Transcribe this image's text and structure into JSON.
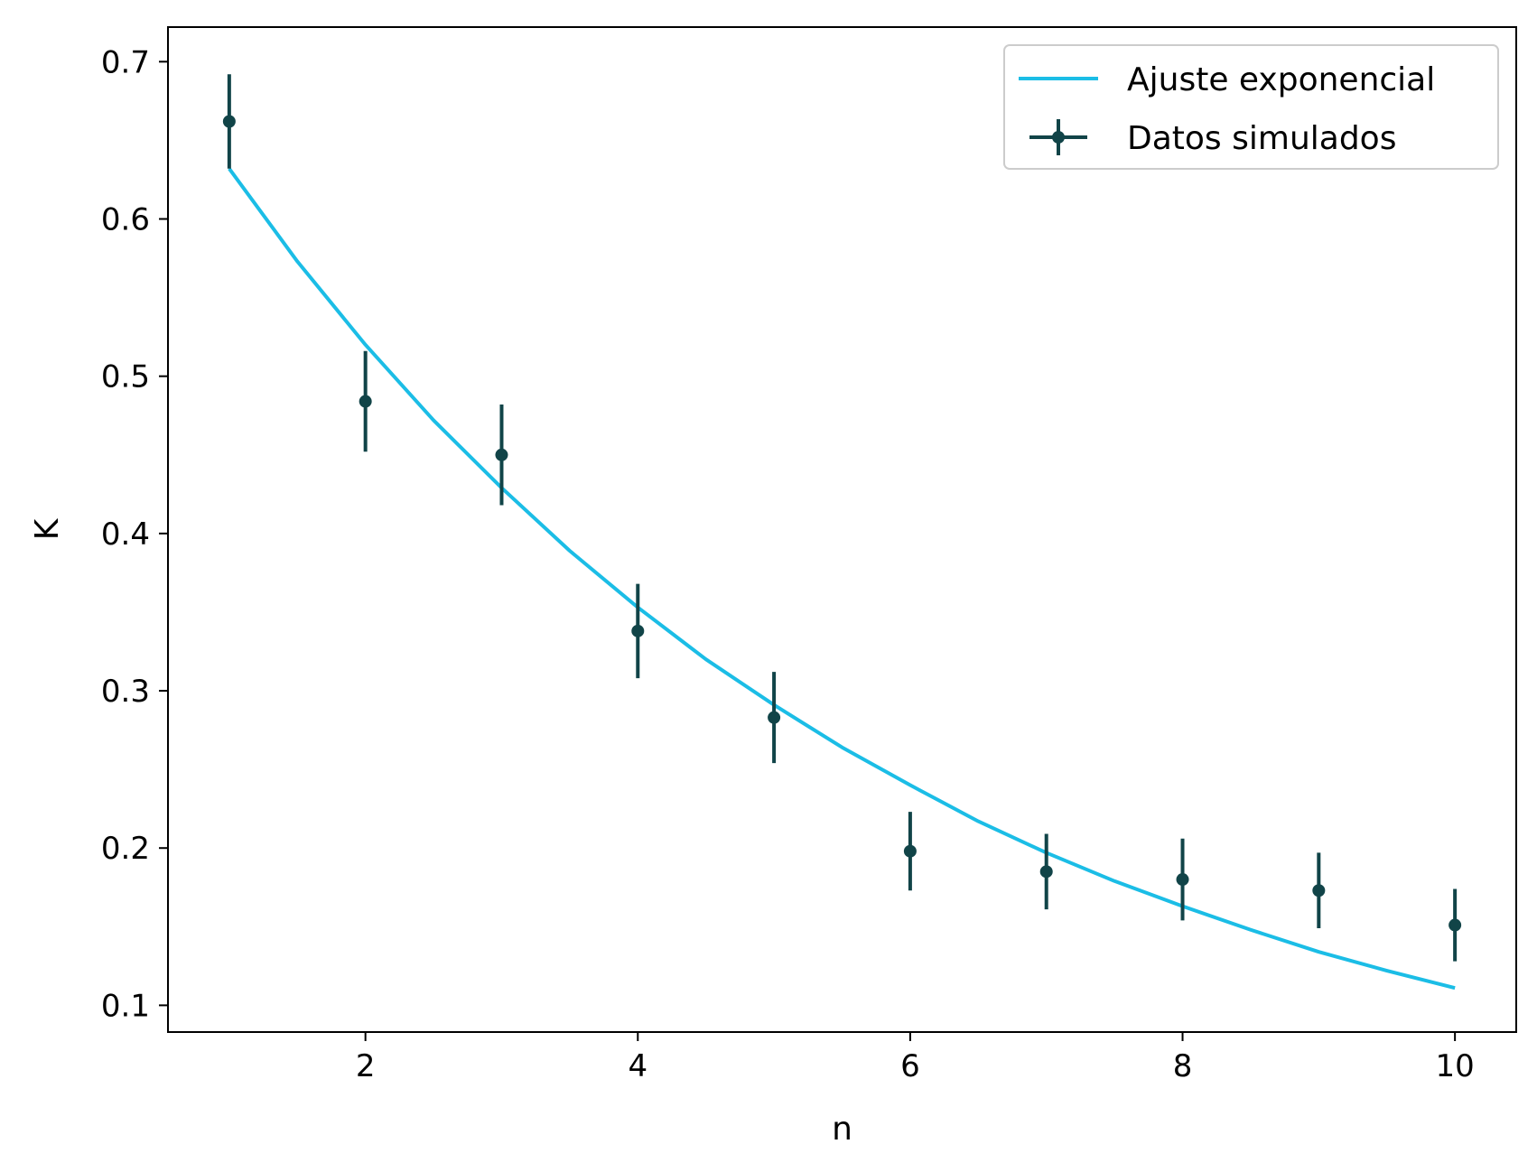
{
  "chart_data": {
    "type": "scatter",
    "title": "",
    "xlabel": "n",
    "ylabel": "K",
    "xlim": [
      0.55,
      10.45
    ],
    "ylim": [
      0.083,
      0.722
    ],
    "xticks": [
      2,
      4,
      6,
      8,
      10
    ],
    "xtick_labels": [
      "2",
      "4",
      "6",
      "8",
      "10"
    ],
    "yticks": [
      0.1,
      0.2,
      0.3,
      0.4,
      0.5,
      0.6,
      0.7
    ],
    "ytick_labels": [
      "0.1",
      "0.2",
      "0.3",
      "0.4",
      "0.5",
      "0.6",
      "0.7"
    ],
    "grid": false,
    "legend_position": "top-right",
    "series": [
      {
        "name": "Ajuste exponencial",
        "kind": "line",
        "color": "#1bbde6",
        "x": [
          1,
          1.5,
          2,
          2.5,
          3,
          3.5,
          4,
          4.5,
          5,
          5.5,
          6,
          6.5,
          7,
          7.5,
          8,
          8.5,
          9,
          9.5,
          10
        ],
        "y": [
          0.632,
          0.573,
          0.52,
          0.472,
          0.429,
          0.389,
          0.353,
          0.32,
          0.291,
          0.264,
          0.24,
          0.217,
          0.197,
          0.179,
          0.163,
          0.148,
          0.134,
          0.122,
          0.111
        ]
      },
      {
        "name": "Datos simulados",
        "kind": "errorbar",
        "color": "#114448",
        "x": [
          1,
          2,
          3,
          4,
          5,
          6,
          7,
          8,
          9,
          10
        ],
        "y": [
          0.662,
          0.484,
          0.45,
          0.338,
          0.283,
          0.198,
          0.185,
          0.18,
          0.173,
          0.151
        ],
        "yerr": [
          0.03,
          0.032,
          0.032,
          0.03,
          0.029,
          0.025,
          0.024,
          0.026,
          0.024,
          0.023
        ]
      }
    ]
  }
}
